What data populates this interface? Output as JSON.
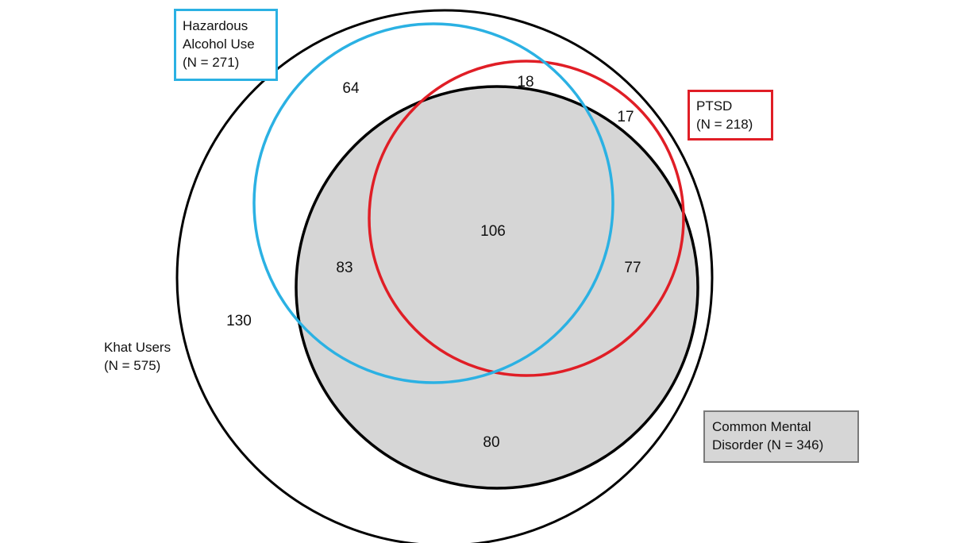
{
  "sets": {
    "khat_users": {
      "label_line1": "Khat Users",
      "label_line2": "(N = 575)",
      "color": "#000000"
    },
    "hazardous_alcohol_use": {
      "label_line1": "Hazardous",
      "label_line2": "Alcohol Use",
      "label_line3": "(N = 271)",
      "color": "#2bb1e3"
    },
    "ptsd": {
      "label_line1": "PTSD",
      "label_line2": "(N = 218)",
      "color": "#e01e26"
    },
    "common_mental_disorder": {
      "label_line1": "Common Mental",
      "label_line2": "Disorder (N = 346)",
      "fill_color": "#d6d6d6"
    }
  },
  "regions": {
    "khat_only": "130",
    "alcohol_only": "64",
    "alcohol_ptsd_only": "18",
    "ptsd_only": "17",
    "alcohol_cmd": "83",
    "alcohol_ptsd_cmd": "106",
    "ptsd_cmd": "77",
    "cmd_only": "80"
  }
}
